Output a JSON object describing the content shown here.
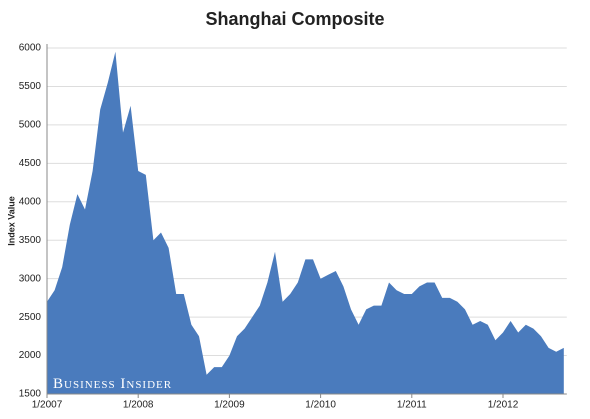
{
  "chart_data": {
    "type": "area",
    "title": "Shanghai Composite",
    "y_label": "Index Value",
    "watermark": "Business Insider",
    "x": [
      "1/2007",
      "2/2007",
      "3/2007",
      "4/2007",
      "5/2007",
      "6/2007",
      "7/2007",
      "8/2007",
      "9/2007",
      "10/2007",
      "11/2007",
      "12/2007",
      "1/2008",
      "2/2008",
      "3/2008",
      "4/2008",
      "5/2008",
      "6/2008",
      "7/2008",
      "8/2008",
      "9/2008",
      "10/2008",
      "11/2008",
      "12/2008",
      "1/2009",
      "2/2009",
      "3/2009",
      "4/2009",
      "5/2009",
      "6/2009",
      "7/2009",
      "8/2009",
      "9/2009",
      "10/2009",
      "11/2009",
      "12/2009",
      "1/2010",
      "2/2010",
      "3/2010",
      "4/2010",
      "5/2010",
      "6/2010",
      "7/2010",
      "8/2010",
      "9/2010",
      "10/2010",
      "11/2010",
      "12/2010",
      "1/2011",
      "2/2011",
      "3/2011",
      "4/2011",
      "5/2011",
      "6/2011",
      "7/2011",
      "8/2011",
      "9/2011",
      "10/2011",
      "11/2011",
      "12/2011",
      "1/2012",
      "2/2012",
      "3/2012",
      "4/2012",
      "5/2012",
      "6/2012",
      "7/2012",
      "8/2012",
      "9/2012"
    ],
    "values": [
      2700,
      2850,
      3150,
      3700,
      4100,
      3900,
      4400,
      5200,
      5550,
      5950,
      4900,
      5250,
      4400,
      4350,
      3500,
      3600,
      3400,
      2800,
      2800,
      2400,
      2250,
      1750,
      1850,
      1850,
      2000,
      2250,
      2350,
      2500,
      2650,
      2950,
      3350,
      2700,
      2800,
      2950,
      3250,
      3250,
      3000,
      3050,
      3100,
      2900,
      2600,
      2400,
      2600,
      2650,
      2650,
      2950,
      2850,
      2800,
      2800,
      2900,
      2950,
      2950,
      2750,
      2750,
      2700,
      2600,
      2400,
      2450,
      2400,
      2200,
      2300,
      2450,
      2300,
      2400,
      2350,
      2250,
      2100,
      2050,
      2100
    ],
    "color": "#4a7bbd",
    "ylim": [
      1500,
      6000
    ],
    "yticks": [
      1500,
      2000,
      2500,
      3000,
      3500,
      4000,
      4500,
      5000,
      5500,
      6000
    ],
    "xticks": [
      "1/2007",
      "1/2008",
      "1/2009",
      "1/2010",
      "1/2011",
      "1/2012"
    ],
    "grid": true
  }
}
